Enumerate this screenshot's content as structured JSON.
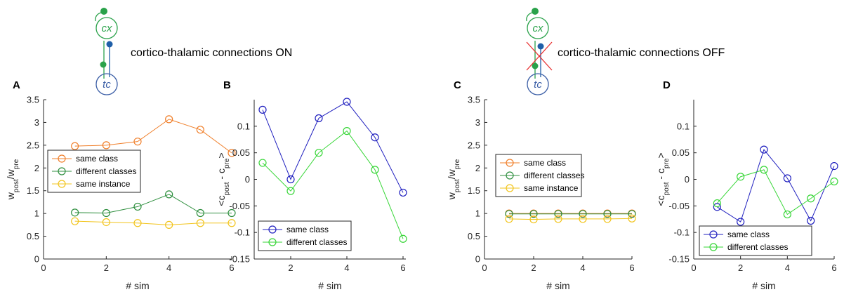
{
  "annotations": {
    "left": "cortico-thalamic connections ON",
    "right": "cortico-thalamic connections OFF"
  },
  "nodes": {
    "cx": "cx",
    "tc": "tc"
  },
  "colors": {
    "same_class_A": "#f07f2a",
    "different_classes_A": "#2f8f3f",
    "same_instance_A": "#f2c41c",
    "same_class_B": "#1f1fbf",
    "different_classes_B": "#36d636",
    "cx_node": "#2aa24a",
    "tc_node": "#3b5ea6",
    "synapse_blue": "#1f5fa8",
    "cross": "#e83030"
  },
  "chart_data": [
    {
      "panel": "A",
      "type": "line",
      "xlabel": "# sim",
      "ylabel": "w_post/w_pre",
      "xlim": [
        0,
        6
      ],
      "ylim": [
        0,
        3.5
      ],
      "xticks": [
        "0",
        "2",
        "4",
        "6"
      ],
      "yticks": [
        "0",
        "0.5",
        "1",
        "1.5",
        "2",
        "2.5",
        "3",
        "3.5"
      ],
      "x": [
        1,
        2,
        3,
        4,
        5,
        6
      ],
      "legend_position": "middle-left",
      "series": [
        {
          "name": "same class",
          "values": [
            2.48,
            2.5,
            2.58,
            3.07,
            2.84,
            2.33
          ]
        },
        {
          "name": "different classes",
          "values": [
            1.02,
            1.01,
            1.15,
            1.42,
            1.01,
            1.01
          ]
        },
        {
          "name": "same instance",
          "values": [
            0.83,
            0.81,
            0.79,
            0.75,
            0.79,
            0.79
          ]
        }
      ]
    },
    {
      "panel": "B",
      "type": "line",
      "xlabel": "# sim",
      "ylabel": "<c_post - c_pre>",
      "xlim": [
        0.7,
        6.1
      ],
      "ylim": [
        -0.15,
        0.15
      ],
      "xticks": [
        "2",
        "4",
        "6"
      ],
      "yticks": [
        "-0.15",
        "-0.1",
        "-0.05",
        "0",
        "0.05",
        "0.1"
      ],
      "x": [
        1,
        2,
        3,
        4,
        5,
        6
      ],
      "legend_position": "bottom-left",
      "series": [
        {
          "name": "same class",
          "values": [
            0.131,
            0.0,
            0.115,
            0.146,
            0.079,
            -0.025
          ]
        },
        {
          "name": "different classes",
          "values": [
            0.031,
            -0.022,
            0.05,
            0.091,
            0.018,
            -0.112
          ]
        }
      ]
    },
    {
      "panel": "C",
      "type": "line",
      "xlabel": "# sim",
      "ylabel": "w_post/w_pre",
      "xlim": [
        0,
        6
      ],
      "ylim": [
        0,
        3.5
      ],
      "xticks": [
        "0",
        "2",
        "4",
        "6"
      ],
      "yticks": [
        "0",
        "0.5",
        "1",
        "1.5",
        "2",
        "2.5",
        "3",
        "3.5"
      ],
      "x": [
        1,
        2,
        3,
        4,
        5,
        6
      ],
      "legend_position": "middle-left",
      "series": [
        {
          "name": "same class",
          "values": [
            1.0,
            1.0,
            1.0,
            1.0,
            1.0,
            1.0
          ]
        },
        {
          "name": "different classes",
          "values": [
            0.99,
            0.99,
            0.99,
            0.99,
            0.99,
            0.99
          ]
        },
        {
          "name": "same instance",
          "values": [
            0.88,
            0.87,
            0.88,
            0.88,
            0.88,
            0.89
          ]
        }
      ]
    },
    {
      "panel": "D",
      "type": "line",
      "xlabel": "# sim",
      "ylabel": "<c_post - c_pre>",
      "xlim": [
        0,
        6
      ],
      "ylim": [
        -0.15,
        0.15
      ],
      "xticks": [
        "0",
        "2",
        "4",
        "6"
      ],
      "yticks": [
        "-0.15",
        "-0.1",
        "-0.05",
        "0",
        "0.05",
        "0.1"
      ],
      "x": [
        1,
        2,
        3,
        4,
        5,
        6
      ],
      "legend_position": "bottom-left",
      "series": [
        {
          "name": "same class",
          "values": [
            -0.052,
            -0.08,
            0.056,
            0.002,
            -0.078,
            0.025
          ]
        },
        {
          "name": "different classes",
          "values": [
            -0.045,
            0.005,
            0.018,
            -0.066,
            -0.036,
            -0.004
          ]
        }
      ]
    }
  ]
}
